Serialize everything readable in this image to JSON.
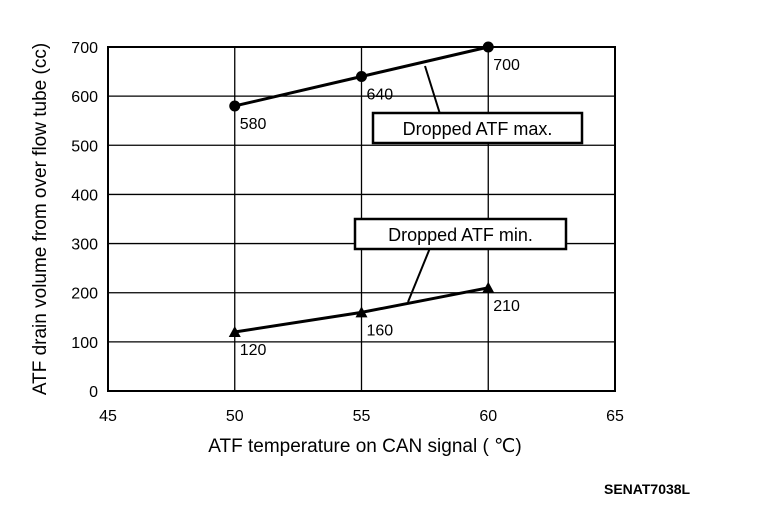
{
  "chart_data": {
    "type": "line",
    "xlabel": "ATF temperature on CAN signal ( ℃)",
    "ylabel": "ATF drain volume from over flow tube (cc)",
    "xlim": [
      45,
      65
    ],
    "ylim": [
      0,
      700
    ],
    "xticks": [
      45,
      50,
      55,
      60,
      65
    ],
    "yticks": [
      0,
      100,
      200,
      300,
      400,
      500,
      600,
      700
    ],
    "grid": true,
    "series": [
      {
        "name": "Dropped ATF max.",
        "marker": "circle",
        "x": [
          50,
          55,
          60
        ],
        "y": [
          580,
          640,
          700
        ],
        "labels": [
          "580",
          "640",
          "700"
        ]
      },
      {
        "name": "Dropped ATF min.",
        "marker": "triangle",
        "x": [
          50,
          55,
          60
        ],
        "y": [
          120,
          160,
          210
        ],
        "labels": [
          "120",
          "160",
          "210"
        ]
      }
    ],
    "code": "SENAT7038L"
  }
}
